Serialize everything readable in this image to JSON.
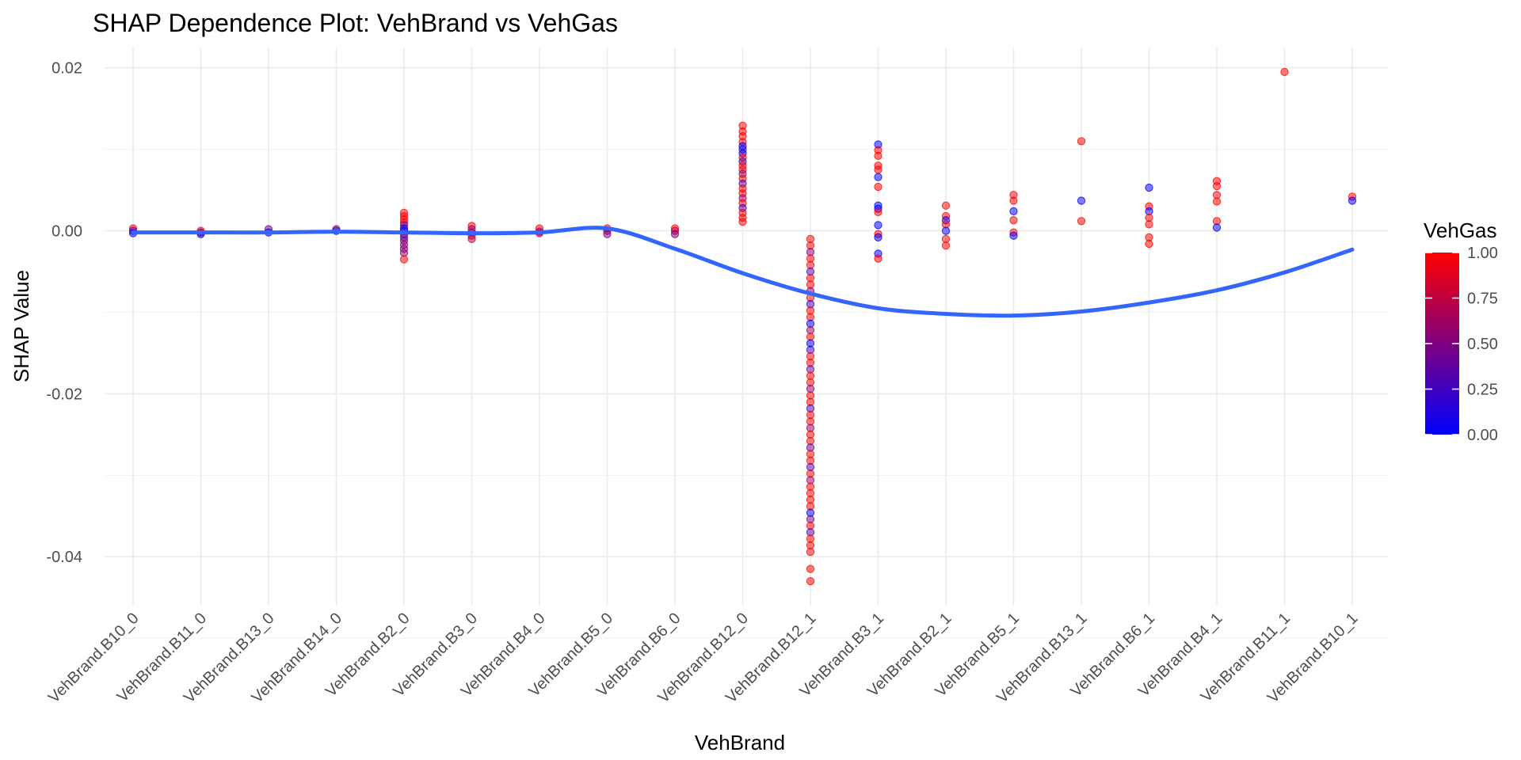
{
  "chart_data": {
    "type": "scatter",
    "title": "SHAP Dependence Plot: VehBrand vs VehGas",
    "xlabel": "VehBrand",
    "ylabel": "SHAP Value",
    "categories": [
      "VehBrand.B10_0",
      "VehBrand.B11_0",
      "VehBrand.B13_0",
      "VehBrand.B14_0",
      "VehBrand.B2_0",
      "VehBrand.B3_0",
      "VehBrand.B4_0",
      "VehBrand.B5_0",
      "VehBrand.B6_0",
      "VehBrand.B12_0",
      "VehBrand.B12_1",
      "VehBrand.B3_1",
      "VehBrand.B2_1",
      "VehBrand.B5_1",
      "VehBrand.B13_1",
      "VehBrand.B6_1",
      "VehBrand.B4_1",
      "VehBrand.B11_1",
      "VehBrand.B10_1"
    ],
    "ylim": [
      -0.046,
      0.0225
    ],
    "yticks": [
      -0.04,
      -0.02,
      0.0,
      0.02
    ],
    "ytick_labels": [
      "-0.04",
      "-0.02",
      "0.00",
      "0.02"
    ],
    "grid": true,
    "point_colors": {
      "low": "#0000ff",
      "high": "#ff0000"
    },
    "smooth_line": {
      "color": "#3366ff",
      "values": [
        -0.0002,
        -0.0002,
        -0.0002,
        -0.0001,
        -0.0002,
        -0.0003,
        -0.0002,
        0.0003,
        -0.0022,
        -0.0052,
        -0.0077,
        -0.0095,
        -0.0102,
        -0.0104,
        -0.0099,
        -0.0088,
        -0.0073,
        -0.0051,
        -0.0023
      ]
    },
    "points": [
      {
        "x": 0,
        "y": 0.0003,
        "gas": 1
      },
      {
        "x": 0,
        "y": 0.0,
        "gas": 0.3
      },
      {
        "x": 0,
        "y": -0.0003,
        "gas": 0
      },
      {
        "x": 1,
        "y": 0.0,
        "gas": 1
      },
      {
        "x": 1,
        "y": -0.0002,
        "gas": 0.5
      },
      {
        "x": 1,
        "y": -0.0004,
        "gas": 0
      },
      {
        "x": 2,
        "y": 0.0002,
        "gas": 0.4
      },
      {
        "x": 2,
        "y": -0.0002,
        "gas": 0
      },
      {
        "x": 3,
        "y": 0.0002,
        "gas": 0.6
      },
      {
        "x": 3,
        "y": 0.0,
        "gas": 0.2
      },
      {
        "x": 4,
        "y": 0.0022,
        "gas": 1
      },
      {
        "x": 4,
        "y": 0.0018,
        "gas": 1
      },
      {
        "x": 4,
        "y": 0.0014,
        "gas": 1
      },
      {
        "x": 4,
        "y": 0.001,
        "gas": 0.9
      },
      {
        "x": 4,
        "y": 0.0007,
        "gas": 0.6
      },
      {
        "x": 4,
        "y": 0.0003,
        "gas": 0
      },
      {
        "x": 4,
        "y": 0.0,
        "gas": 0
      },
      {
        "x": 4,
        "y": -0.0004,
        "gas": 0.2
      },
      {
        "x": 4,
        "y": -0.0008,
        "gas": 0.5
      },
      {
        "x": 4,
        "y": -0.0012,
        "gas": 0.4
      },
      {
        "x": 4,
        "y": -0.0017,
        "gas": 0.6
      },
      {
        "x": 4,
        "y": -0.0022,
        "gas": 0.5
      },
      {
        "x": 4,
        "y": -0.0027,
        "gas": 0.6
      },
      {
        "x": 4,
        "y": -0.0035,
        "gas": 1
      },
      {
        "x": 5,
        "y": 0.0006,
        "gas": 1
      },
      {
        "x": 5,
        "y": 0.0002,
        "gas": 0.6
      },
      {
        "x": 5,
        "y": -0.0002,
        "gas": 0.5
      },
      {
        "x": 5,
        "y": -0.0006,
        "gas": 0.7
      },
      {
        "x": 5,
        "y": -0.001,
        "gas": 0.8
      },
      {
        "x": 6,
        "y": 0.0003,
        "gas": 1
      },
      {
        "x": 6,
        "y": -0.0001,
        "gas": 0.5
      },
      {
        "x": 6,
        "y": -0.0003,
        "gas": 0.7
      },
      {
        "x": 7,
        "y": 0.0003,
        "gas": 1
      },
      {
        "x": 7,
        "y": 0.0,
        "gas": 0.6
      },
      {
        "x": 7,
        "y": -0.0004,
        "gas": 0.5
      },
      {
        "x": 8,
        "y": 0.0003,
        "gas": 1
      },
      {
        "x": 8,
        "y": 0.0,
        "gas": 0.7
      },
      {
        "x": 8,
        "y": -0.0004,
        "gas": 0.5
      },
      {
        "x": 9,
        "y": 0.0129,
        "gas": 1
      },
      {
        "x": 9,
        "y": 0.0122,
        "gas": 1
      },
      {
        "x": 9,
        "y": 0.0116,
        "gas": 1
      },
      {
        "x": 9,
        "y": 0.0109,
        "gas": 1
      },
      {
        "x": 9,
        "y": 0.0104,
        "gas": 0
      },
      {
        "x": 9,
        "y": 0.01,
        "gas": 0.2
      },
      {
        "x": 9,
        "y": 0.0095,
        "gas": 0
      },
      {
        "x": 9,
        "y": 0.009,
        "gas": 1
      },
      {
        "x": 9,
        "y": 0.0085,
        "gas": 0.3
      },
      {
        "x": 9,
        "y": 0.008,
        "gas": 1
      },
      {
        "x": 9,
        "y": 0.0075,
        "gas": 1
      },
      {
        "x": 9,
        "y": 0.007,
        "gas": 0.5
      },
      {
        "x": 9,
        "y": 0.0064,
        "gas": 1
      },
      {
        "x": 9,
        "y": 0.0058,
        "gas": 0.3
      },
      {
        "x": 9,
        "y": 0.0052,
        "gas": 1
      },
      {
        "x": 9,
        "y": 0.0046,
        "gas": 1
      },
      {
        "x": 9,
        "y": 0.004,
        "gas": 0.6
      },
      {
        "x": 9,
        "y": 0.0034,
        "gas": 1
      },
      {
        "x": 9,
        "y": 0.0028,
        "gas": 0.2
      },
      {
        "x": 9,
        "y": 0.0022,
        "gas": 1
      },
      {
        "x": 9,
        "y": 0.0016,
        "gas": 1
      },
      {
        "x": 9,
        "y": 0.0011,
        "gas": 1
      },
      {
        "x": 10,
        "y": -0.001,
        "gas": 1
      },
      {
        "x": 10,
        "y": -0.0018,
        "gas": 1
      },
      {
        "x": 10,
        "y": -0.0026,
        "gas": 0.5
      },
      {
        "x": 10,
        "y": -0.0034,
        "gas": 1
      },
      {
        "x": 10,
        "y": -0.0042,
        "gas": 1
      },
      {
        "x": 10,
        "y": -0.005,
        "gas": 0.3
      },
      {
        "x": 10,
        "y": -0.0058,
        "gas": 1
      },
      {
        "x": 10,
        "y": -0.0066,
        "gas": 1
      },
      {
        "x": 10,
        "y": -0.0074,
        "gas": 0.5
      },
      {
        "x": 10,
        "y": -0.0082,
        "gas": 1
      },
      {
        "x": 10,
        "y": -0.009,
        "gas": 0.2
      },
      {
        "x": 10,
        "y": -0.0098,
        "gas": 1
      },
      {
        "x": 10,
        "y": -0.0106,
        "gas": 1
      },
      {
        "x": 10,
        "y": -0.0114,
        "gas": 0
      },
      {
        "x": 10,
        "y": -0.0122,
        "gas": 0.6
      },
      {
        "x": 10,
        "y": -0.013,
        "gas": 1
      },
      {
        "x": 10,
        "y": -0.0138,
        "gas": 0
      },
      {
        "x": 10,
        "y": -0.0146,
        "gas": 0.2
      },
      {
        "x": 10,
        "y": -0.0154,
        "gas": 1
      },
      {
        "x": 10,
        "y": -0.0162,
        "gas": 1
      },
      {
        "x": 10,
        "y": -0.017,
        "gas": 0.4
      },
      {
        "x": 10,
        "y": -0.0178,
        "gas": 1
      },
      {
        "x": 10,
        "y": -0.0186,
        "gas": 1
      },
      {
        "x": 10,
        "y": -0.0194,
        "gas": 0.5
      },
      {
        "x": 10,
        "y": -0.0202,
        "gas": 1
      },
      {
        "x": 10,
        "y": -0.021,
        "gas": 1
      },
      {
        "x": 10,
        "y": -0.0218,
        "gas": 0.3
      },
      {
        "x": 10,
        "y": -0.0226,
        "gas": 1
      },
      {
        "x": 10,
        "y": -0.0234,
        "gas": 1
      },
      {
        "x": 10,
        "y": -0.0242,
        "gas": 0.6
      },
      {
        "x": 10,
        "y": -0.025,
        "gas": 1
      },
      {
        "x": 10,
        "y": -0.0258,
        "gas": 1
      },
      {
        "x": 10,
        "y": -0.0266,
        "gas": 0.4
      },
      {
        "x": 10,
        "y": -0.0274,
        "gas": 1
      },
      {
        "x": 10,
        "y": -0.0282,
        "gas": 1
      },
      {
        "x": 10,
        "y": -0.029,
        "gas": 0.3
      },
      {
        "x": 10,
        "y": -0.0298,
        "gas": 1
      },
      {
        "x": 10,
        "y": -0.0306,
        "gas": 0.6
      },
      {
        "x": 10,
        "y": -0.0314,
        "gas": 1
      },
      {
        "x": 10,
        "y": -0.0322,
        "gas": 1
      },
      {
        "x": 10,
        "y": -0.033,
        "gas": 1
      },
      {
        "x": 10,
        "y": -0.0338,
        "gas": 1
      },
      {
        "x": 10,
        "y": -0.0346,
        "gas": 0
      },
      {
        "x": 10,
        "y": -0.0354,
        "gas": 0.5
      },
      {
        "x": 10,
        "y": -0.0362,
        "gas": 1
      },
      {
        "x": 10,
        "y": -0.037,
        "gas": 0.3
      },
      {
        "x": 10,
        "y": -0.0378,
        "gas": 1
      },
      {
        "x": 10,
        "y": -0.0386,
        "gas": 1
      },
      {
        "x": 10,
        "y": -0.0394,
        "gas": 1
      },
      {
        "x": 10,
        "y": -0.0415,
        "gas": 1
      },
      {
        "x": 10,
        "y": -0.043,
        "gas": 1
      },
      {
        "x": 11,
        "y": 0.0106,
        "gas": 0
      },
      {
        "x": 11,
        "y": 0.0099,
        "gas": 1
      },
      {
        "x": 11,
        "y": 0.0092,
        "gas": 1
      },
      {
        "x": 11,
        "y": 0.008,
        "gas": 1
      },
      {
        "x": 11,
        "y": 0.0075,
        "gas": 1
      },
      {
        "x": 11,
        "y": 0.0066,
        "gas": 0
      },
      {
        "x": 11,
        "y": 0.0054,
        "gas": 1
      },
      {
        "x": 11,
        "y": 0.0031,
        "gas": 0
      },
      {
        "x": 11,
        "y": 0.0027,
        "gas": 0
      },
      {
        "x": 11,
        "y": 0.0023,
        "gas": 1
      },
      {
        "x": 11,
        "y": 0.0007,
        "gas": 0
      },
      {
        "x": 11,
        "y": -0.0004,
        "gas": 1
      },
      {
        "x": 11,
        "y": -0.0008,
        "gas": 0
      },
      {
        "x": 11,
        "y": -0.0028,
        "gas": 0
      },
      {
        "x": 11,
        "y": -0.0034,
        "gas": 1
      },
      {
        "x": 12,
        "y": 0.0031,
        "gas": 1
      },
      {
        "x": 12,
        "y": 0.0018,
        "gas": 1
      },
      {
        "x": 12,
        "y": 0.0013,
        "gas": 0
      },
      {
        "x": 12,
        "y": 0.0008,
        "gas": 1
      },
      {
        "x": 12,
        "y": 0.0,
        "gas": 0
      },
      {
        "x": 12,
        "y": -0.001,
        "gas": 1
      },
      {
        "x": 12,
        "y": -0.0018,
        "gas": 1
      },
      {
        "x": 13,
        "y": 0.0044,
        "gas": 1
      },
      {
        "x": 13,
        "y": 0.0037,
        "gas": 1
      },
      {
        "x": 13,
        "y": 0.0024,
        "gas": 0
      },
      {
        "x": 13,
        "y": 0.0013,
        "gas": 1
      },
      {
        "x": 13,
        "y": -0.0002,
        "gas": 1
      },
      {
        "x": 13,
        "y": -0.0006,
        "gas": 0
      },
      {
        "x": 14,
        "y": 0.011,
        "gas": 1
      },
      {
        "x": 14,
        "y": 0.0037,
        "gas": 0
      },
      {
        "x": 14,
        "y": 0.0012,
        "gas": 1
      },
      {
        "x": 15,
        "y": 0.0053,
        "gas": 0
      },
      {
        "x": 15,
        "y": 0.003,
        "gas": 1
      },
      {
        "x": 15,
        "y": 0.0024,
        "gas": 0
      },
      {
        "x": 15,
        "y": 0.0016,
        "gas": 1
      },
      {
        "x": 15,
        "y": 0.0008,
        "gas": 1
      },
      {
        "x": 15,
        "y": -0.0008,
        "gas": 1
      },
      {
        "x": 15,
        "y": -0.0016,
        "gas": 1
      },
      {
        "x": 16,
        "y": 0.0061,
        "gas": 1
      },
      {
        "x": 16,
        "y": 0.0055,
        "gas": 1
      },
      {
        "x": 16,
        "y": 0.0044,
        "gas": 1
      },
      {
        "x": 16,
        "y": 0.0036,
        "gas": 1
      },
      {
        "x": 16,
        "y": 0.0012,
        "gas": 1
      },
      {
        "x": 16,
        "y": 0.0004,
        "gas": 0
      },
      {
        "x": 17,
        "y": 0.0195,
        "gas": 1
      },
      {
        "x": 18,
        "y": 0.0042,
        "gas": 1
      },
      {
        "x": 18,
        "y": 0.0037,
        "gas": 0
      }
    ],
    "legend": {
      "title": "VehGas",
      "position": "right",
      "ticks": [
        0.0,
        0.25,
        0.5,
        0.75,
        1.0
      ],
      "tick_labels": [
        "0.00",
        "0.25",
        "0.50",
        "0.75",
        "1.00"
      ]
    }
  }
}
